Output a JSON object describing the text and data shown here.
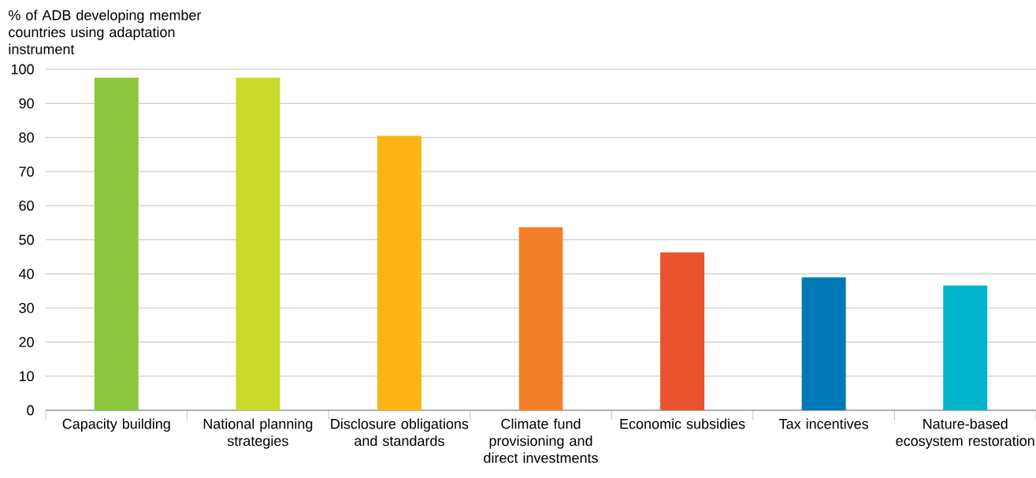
{
  "chart_data": {
    "type": "bar",
    "ylabel": "% of ADB developing member countries using adaptation instrument",
    "categories": [
      "Capacity building",
      "National planning strategies",
      "Disclosure obligations and standards",
      "Climate fund provisioning and direct investments",
      "Economic subsidies",
      "Tax incentives",
      "Nature-based ecosystem restoration"
    ],
    "values": [
      97.6,
      97.6,
      80.5,
      53.7,
      46.3,
      39.0,
      36.6
    ],
    "colors": [
      "#8dc63f",
      "#c9da2a",
      "#fdb515",
      "#f47f2a",
      "#e9532d",
      "#0079b8",
      "#00b5cb"
    ],
    "ylim": [
      0,
      100
    ],
    "yticks": [
      0,
      10,
      20,
      30,
      40,
      50,
      60,
      70,
      80,
      90,
      100
    ],
    "grid": "y"
  }
}
